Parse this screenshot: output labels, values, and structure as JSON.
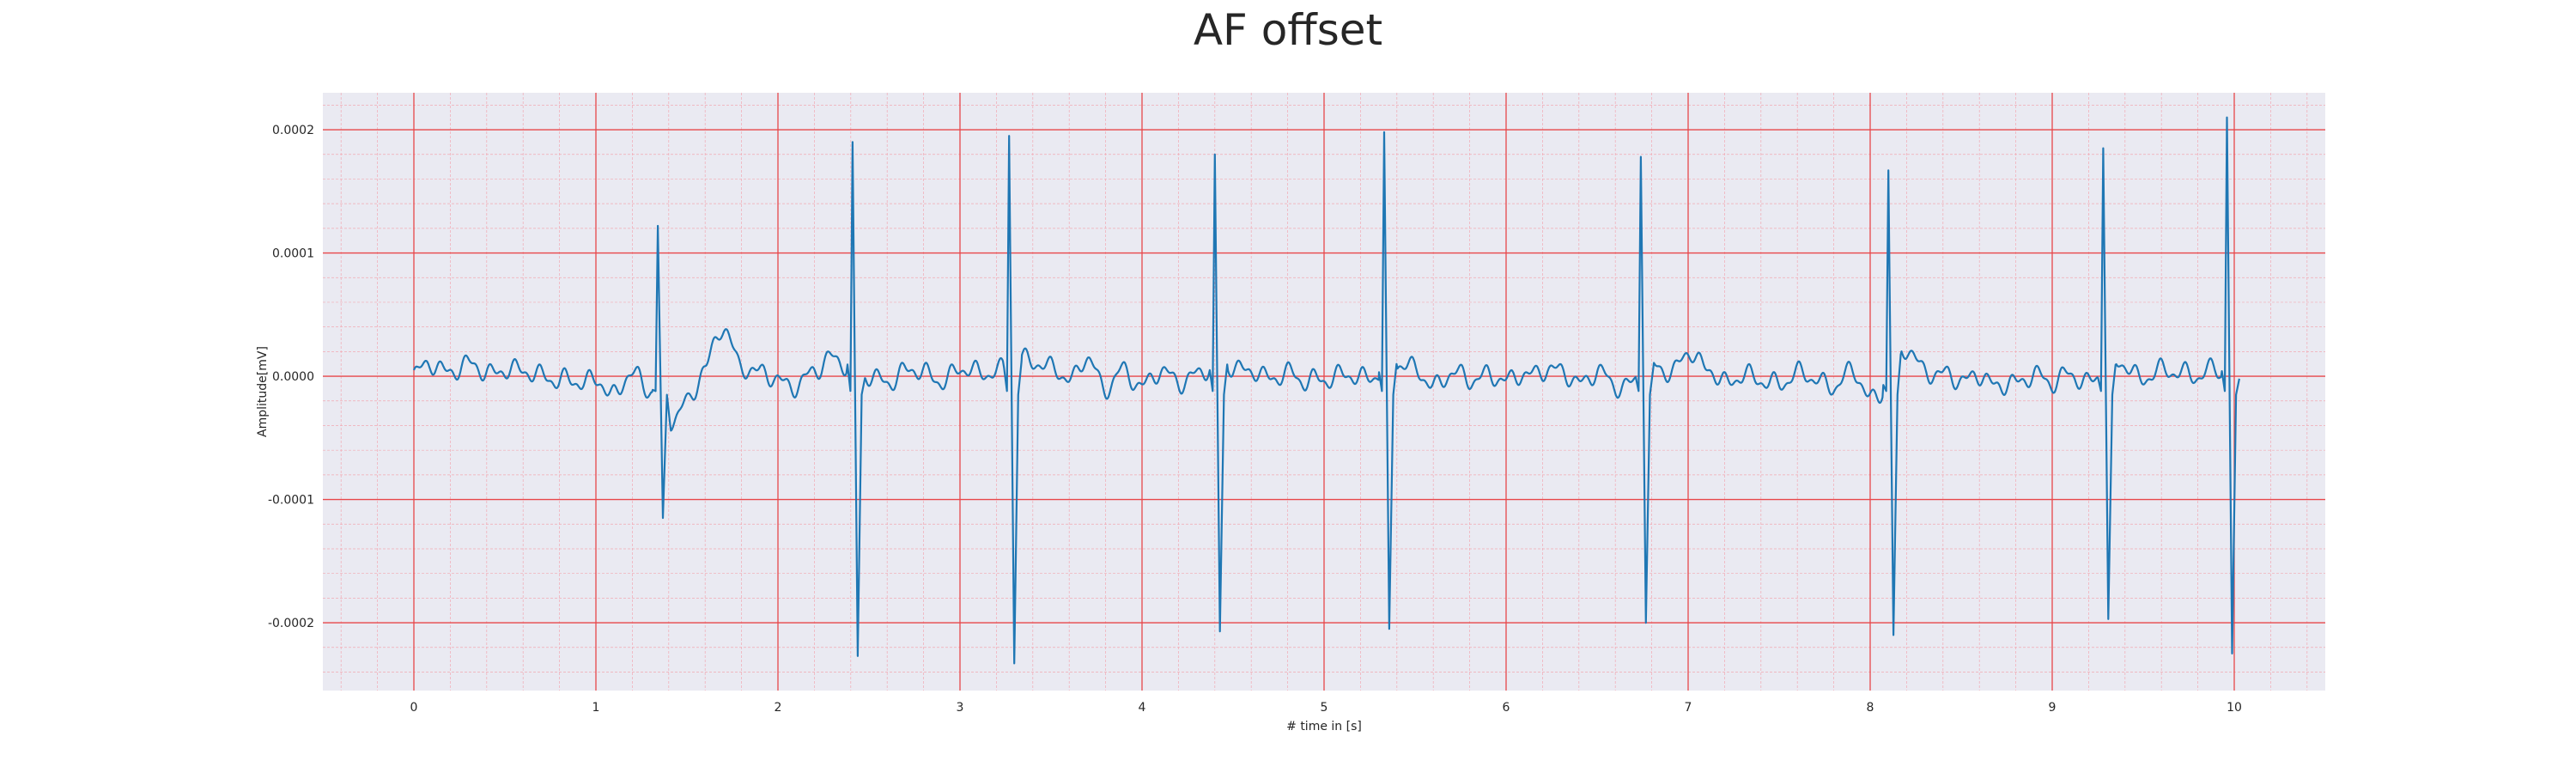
{
  "chart_data": {
    "type": "line",
    "title": "AF offset",
    "xlabel": "# time in [s]",
    "ylabel": "Amplitude[mV]",
    "xlim": [
      -0.5,
      10.5
    ],
    "ylim": [
      -0.000255,
      0.00023
    ],
    "x_ticks": [
      0,
      1,
      2,
      3,
      4,
      5,
      6,
      7,
      8,
      9,
      10
    ],
    "x_tick_labels": [
      "0",
      "1",
      "2",
      "3",
      "4",
      "5",
      "6",
      "7",
      "8",
      "9",
      "10"
    ],
    "y_ticks": [
      -0.0002,
      -0.0001,
      0.0,
      0.0001,
      0.0002
    ],
    "y_tick_labels": [
      "-0.0002",
      "-0.0001",
      "0.0000",
      "0.0001",
      "0.0002"
    ],
    "grid": {
      "major": true,
      "minor": true,
      "major_color": "#e8474a",
      "minor_color": "#f2a9b3"
    },
    "colors": {
      "background": "#eaeaf2",
      "line": "#1f77b4"
    },
    "series": [
      {
        "beats": [
          {
            "t": 1.34,
            "peak": 0.000122,
            "trough": -0.000115
          },
          {
            "t": 2.41,
            "peak": 0.00019,
            "trough": -0.000227
          },
          {
            "t": 3.27,
            "peak": 0.000195,
            "trough": -0.000233
          },
          {
            "t": 4.4,
            "peak": 0.00018,
            "trough": -0.000207
          },
          {
            "t": 5.33,
            "peak": 0.000198,
            "trough": -0.000205
          },
          {
            "t": 6.74,
            "peak": 0.000178,
            "trough": -0.0002
          },
          {
            "t": 8.1,
            "peak": 0.000167,
            "trough": -0.00021
          },
          {
            "t": 9.28,
            "peak": 0.000185,
            "trough": -0.000197
          },
          {
            "t": 9.96,
            "peak": 0.00021,
            "trough": -0.000225
          }
        ],
        "x": [
          0.0,
          0.1,
          0.2,
          0.3,
          0.4,
          0.5,
          0.6,
          0.7,
          0.8,
          0.9,
          1.0,
          1.1,
          1.2,
          1.3,
          1.4,
          1.5,
          1.6,
          1.7,
          1.8,
          1.9,
          2.0,
          2.1,
          2.2,
          2.3,
          2.5,
          2.6,
          2.7,
          2.8,
          2.9,
          3.0,
          3.1,
          3.2,
          3.4,
          3.5,
          3.6,
          3.7,
          3.8,
          3.9,
          4.0,
          4.1,
          4.2,
          4.3,
          4.5,
          4.6,
          4.7,
          4.8,
          4.9,
          5.0,
          5.1,
          5.2,
          5.4,
          5.5,
          5.6,
          5.7,
          5.8,
          5.9,
          6.0,
          6.1,
          6.2,
          6.3,
          6.4,
          6.5,
          6.6,
          6.8,
          6.9,
          7.0,
          7.1,
          7.2,
          7.3,
          7.4,
          7.5,
          7.6,
          7.7,
          7.8,
          7.9,
          8.0,
          8.2,
          8.3,
          8.4,
          8.5,
          8.6,
          8.7,
          8.8,
          8.9,
          9.0,
          9.1,
          9.2,
          9.4,
          9.5,
          9.6,
          9.7,
          9.8,
          9.9,
          10.0
        ],
        "y": [
          0.0,
          1e-05,
          5e-06,
          8e-06,
          4e-06,
          6e-06,
          2e-06,
          3e-06,
          -4e-06,
          -6e-06,
          0.0,
          -1.8e-05,
          4e-06,
          -1e-05,
          -4e-05,
          -2e-05,
          8e-06,
          3.8e-05,
          1e-05,
          2e-06,
          -4e-06,
          -6e-06,
          2e-06,
          1.6e-05,
          -2e-06,
          -3e-06,
          4e-06,
          2e-06,
          -2e-06,
          4e-06,
          3e-06,
          6e-06,
          1.4e-05,
          8e-06,
          -6e-06,
          1.8e-05,
          -1.2e-05,
          4e-06,
          -6e-06,
          2e-06,
          -4e-06,
          3e-06,
          1e-05,
          4e-06,
          -4e-06,
          6e-06,
          -6e-06,
          -3e-06,
          4e-06,
          -4e-06,
          1e-05,
          4e-06,
          -6e-06,
          2e-06,
          -4e-06,
          4e-06,
          -6e-06,
          2e-06,
          6e-06,
          2e-06,
          -4e-06,
          4e-06,
          -1e-05,
          6e-06,
          2e-06,
          2.2e-05,
          4e-06,
          -4e-06,
          2e-06,
          -6e-06,
          -4e-06,
          2e-06,
          -4e-06,
          -6e-06,
          3e-06,
          -1.8e-05,
          2e-05,
          6e-06,
          2e-06,
          -6e-06,
          4e-06,
          -1e-05,
          -6e-06,
          4e-06,
          -8e-06,
          3e-06,
          -4e-06,
          1.2e-05,
          -4e-06,
          4e-06,
          6e-06,
          -2e-06,
          6e-06,
          -2e-06
        ]
      }
    ]
  }
}
